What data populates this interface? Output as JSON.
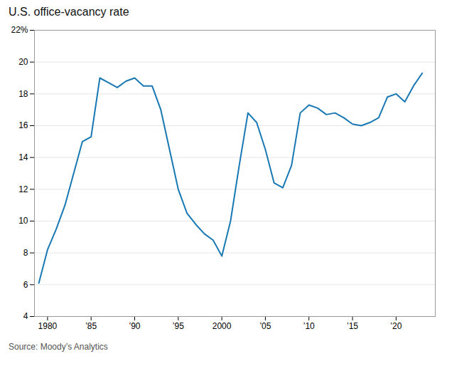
{
  "chart_data": {
    "type": "line",
    "title": "U.S. office-vacancy rate",
    "annotations": [
      "Source: Moody’s Analytics"
    ],
    "x": [
      1979,
      1980,
      1981,
      1982,
      1983,
      1984,
      1985,
      1986,
      1987,
      1988,
      1989,
      1990,
      1991,
      1992,
      1993,
      1994,
      1995,
      1996,
      1997,
      1998,
      1999,
      2000,
      2001,
      2002,
      2003,
      2004,
      2005,
      2006,
      2007,
      2008,
      2009,
      2010,
      2011,
      2012,
      2013,
      2014,
      2015,
      2016,
      2017,
      2018,
      2019,
      2020,
      2021,
      2022,
      2023
    ],
    "values": [
      6.1,
      8.2,
      9.5,
      11.0,
      13.0,
      15.0,
      15.3,
      19.0,
      18.7,
      18.4,
      18.8,
      19.0,
      18.5,
      18.5,
      17.0,
      14.5,
      12.0,
      10.5,
      9.8,
      9.2,
      8.8,
      7.8,
      10.0,
      13.5,
      16.8,
      16.2,
      14.5,
      12.4,
      12.1,
      13.5,
      16.8,
      17.3,
      17.1,
      16.7,
      16.8,
      16.5,
      16.1,
      16.0,
      16.2,
      16.5,
      17.8,
      18.0,
      17.5,
      18.5,
      19.3
    ],
    "color": "#1878b4",
    "xlim": [
      1978.5,
      2024.5
    ],
    "xticks": [
      1980,
      {
        "value": 1985,
        "label": "’85"
      },
      {
        "value": 1990,
        "label": "’90"
      },
      {
        "value": 1995,
        "label": "’95"
      },
      2000,
      {
        "value": 2005,
        "label": "’05"
      },
      {
        "value": 2010,
        "label": "’10"
      },
      {
        "value": 2015,
        "label": "’15"
      },
      {
        "value": 2020,
        "label": "’20"
      }
    ],
    "ylim": [
      4,
      22
    ],
    "yticks": [
      4,
      6,
      8,
      10,
      12,
      14,
      16,
      18,
      20,
      {
        "value": 22,
        "label": "22%"
      }
    ],
    "grid": "y"
  }
}
